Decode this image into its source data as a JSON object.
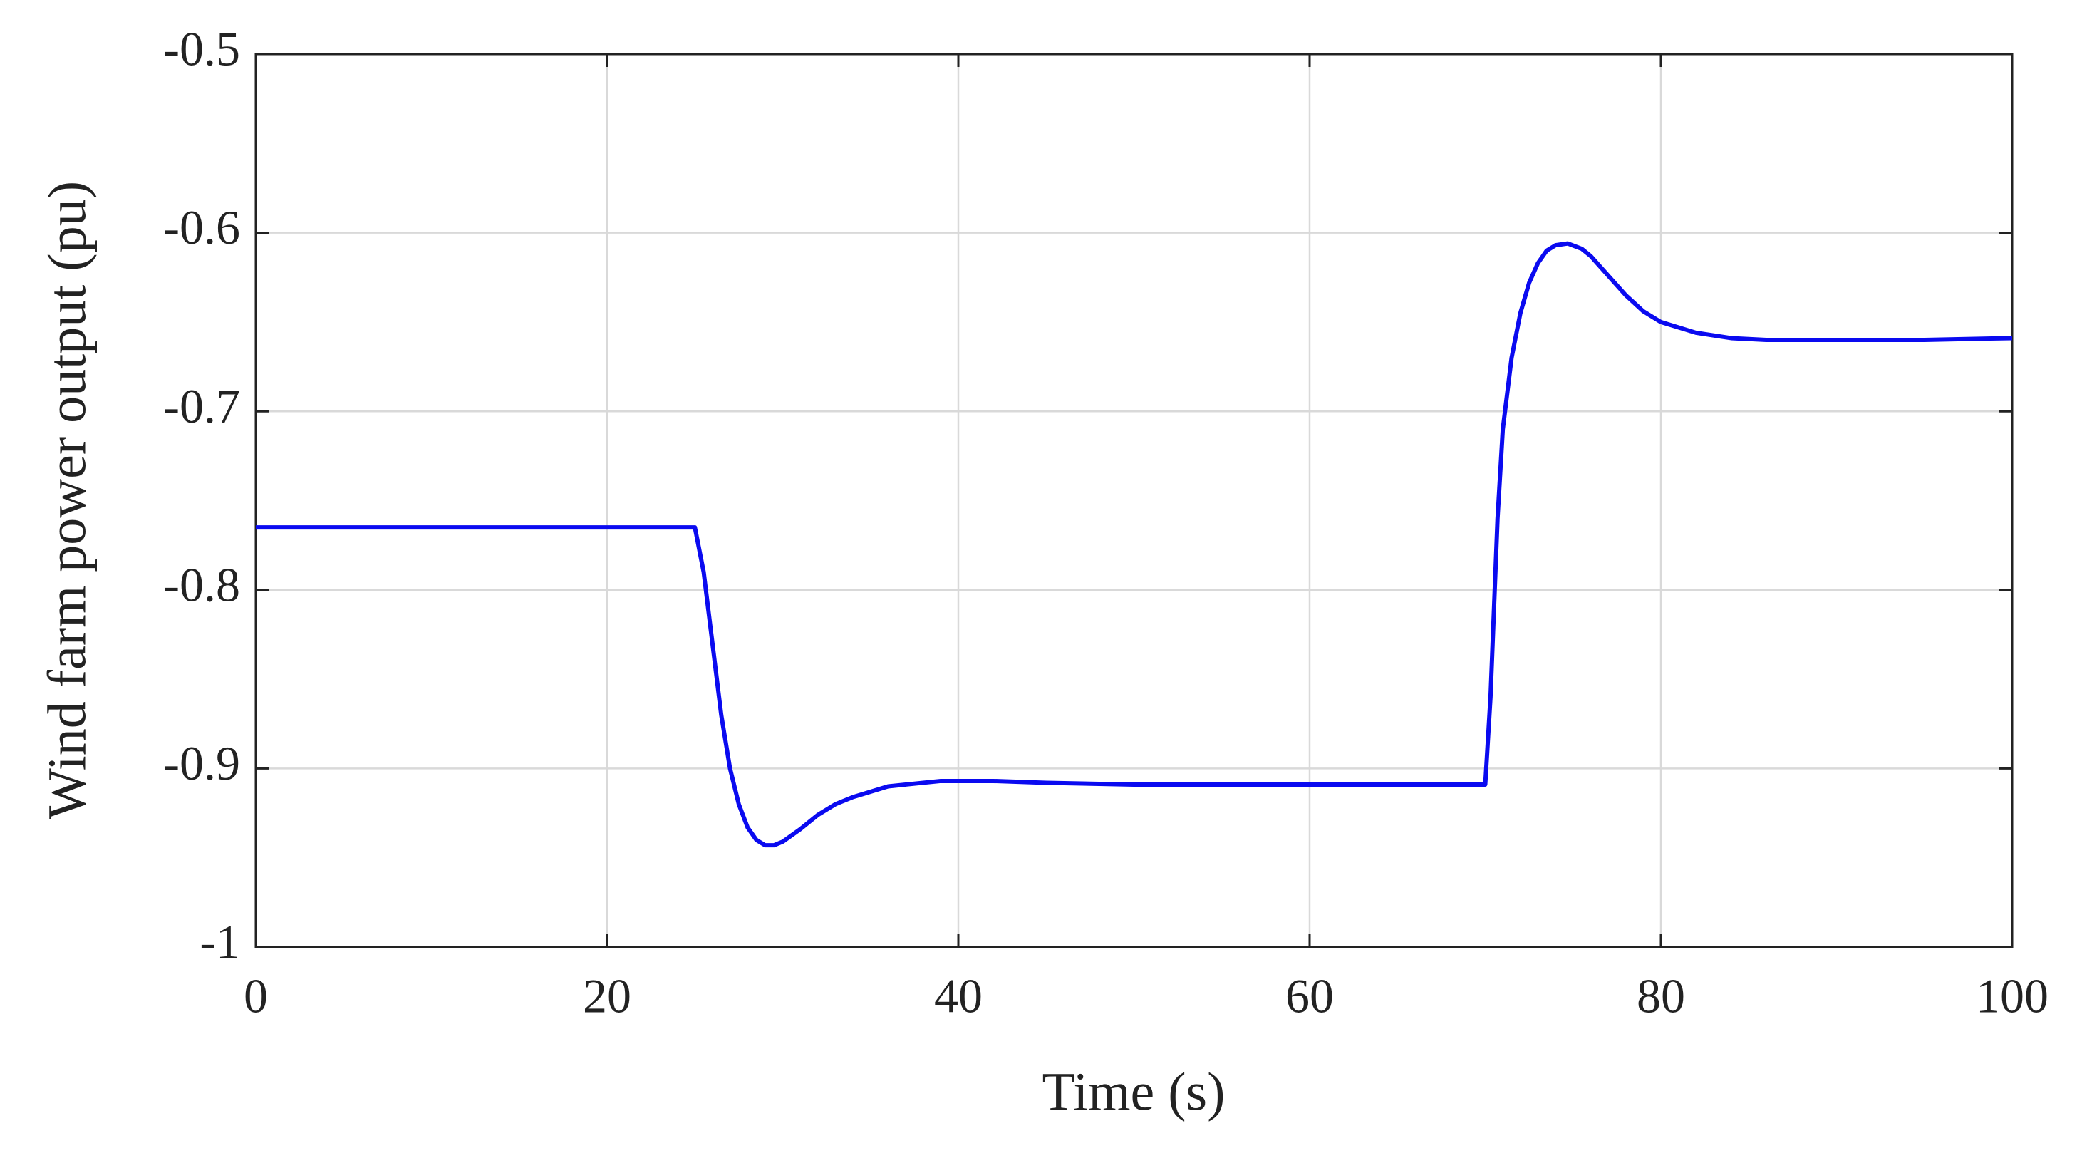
{
  "chart_data": {
    "type": "line",
    "xlabel": "Time (s)",
    "ylabel": "Wind farm power output (pu)",
    "x": [
      0,
      25,
      25.5,
      26,
      26.5,
      27,
      27.5,
      28,
      28.5,
      29,
      29.5,
      30,
      31,
      32,
      33,
      34,
      35,
      36,
      37,
      38,
      39,
      40,
      42,
      45,
      50,
      55,
      60,
      65,
      70,
      70.3,
      70.7,
      71,
      71.5,
      72,
      72.5,
      73,
      73.5,
      74,
      74.7,
      75.5,
      76,
      77,
      78,
      79,
      80,
      82,
      84,
      86,
      90,
      95,
      100
    ],
    "values": [
      -0.765,
      -0.765,
      -0.79,
      -0.83,
      -0.87,
      -0.9,
      -0.92,
      -0.933,
      -0.94,
      -0.943,
      -0.943,
      -0.941,
      -0.934,
      -0.926,
      -0.92,
      -0.916,
      -0.913,
      -0.91,
      -0.909,
      -0.908,
      -0.907,
      -0.907,
      -0.907,
      -0.908,
      -0.909,
      -0.909,
      -0.909,
      -0.909,
      -0.909,
      -0.86,
      -0.76,
      -0.71,
      -0.67,
      -0.645,
      -0.628,
      -0.617,
      -0.61,
      -0.607,
      -0.606,
      -0.609,
      -0.613,
      -0.624,
      -0.635,
      -0.644,
      -0.65,
      -0.656,
      -0.659,
      -0.66,
      -0.66,
      -0.66,
      -0.659
    ],
    "color": "#0a0af0",
    "xlim": [
      0,
      100
    ],
    "xticks": [
      0,
      20,
      40,
      60,
      80,
      100
    ],
    "ylim": [
      -1,
      -0.5
    ],
    "yticks": [
      -1,
      -0.9,
      -0.8,
      -0.7,
      -0.6,
      -0.5
    ],
    "grid": true
  }
}
